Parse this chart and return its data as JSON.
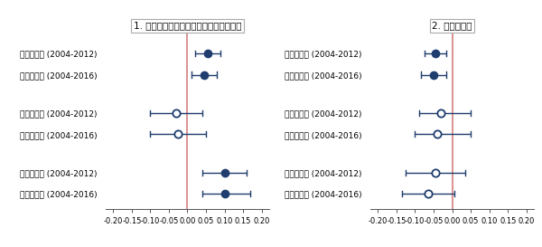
{
  "panel1_title": "1. 都道府県所在地の市（指定都市除く）",
  "panel2_title": "2. その他の市",
  "labels": [
    "収入成長率 (2004-2012)",
    "収入成長率 (2004-2016)",
    "利潤成長率 (2004-2012)",
    "利潤成長率 (2004-2016)",
    "賃金成長率 (2004-2012)",
    "賃金成長率 (2004-2016)"
  ],
  "panel1": {
    "estimates": [
      0.055,
      0.045,
      -0.03,
      -0.025,
      0.1,
      0.1
    ],
    "ci_low": [
      0.02,
      0.01,
      -0.1,
      -0.1,
      0.04,
      0.04
    ],
    "ci_high": [
      0.09,
      0.08,
      0.04,
      0.05,
      0.16,
      0.17
    ],
    "filled": [
      true,
      true,
      false,
      false,
      true,
      true
    ]
  },
  "panel2": {
    "estimates": [
      -0.045,
      -0.05,
      -0.03,
      -0.04,
      -0.045,
      -0.065
    ],
    "ci_low": [
      -0.075,
      -0.085,
      -0.09,
      -0.1,
      -0.125,
      -0.135
    ],
    "ci_high": [
      -0.015,
      -0.015,
      0.05,
      0.05,
      0.035,
      0.005
    ],
    "filled": [
      true,
      true,
      false,
      false,
      false,
      false
    ]
  },
  "xlim": [
    -0.22,
    0.22
  ],
  "xticks": [
    -0.2,
    -0.15,
    -0.1,
    -0.05,
    0.0,
    0.05,
    0.1,
    0.15,
    0.2
  ],
  "xticklabels": [
    "-0.20",
    "-0.15",
    "-0.10",
    "-0.05",
    "0.00",
    "0.05",
    "0.10",
    "0.15",
    "0.20"
  ],
  "vline_color": "#d47f7f",
  "dot_color": "#1f3d6e",
  "line_color": "#1f3d6e",
  "marker_size": 6,
  "label_fontsize": 6.5,
  "title_fontsize": 7.5,
  "tick_fontsize": 6.0,
  "figsize": [
    6.0,
    2.73
  ],
  "dpi": 100,
  "y_positions": [
    6.0,
    5.0,
    3.2,
    2.2,
    0.4,
    -0.6
  ],
  "ylim": [
    -1.3,
    7.0
  ]
}
